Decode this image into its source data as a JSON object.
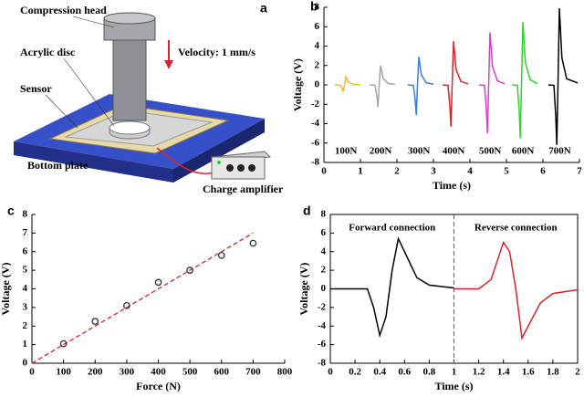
{
  "diagram": {
    "panel": "a",
    "compression_head": "Compression head",
    "velocity": "Velocity: 1 mm/s",
    "acrylic_disc": "Acrylic disc",
    "sensor": "Sensor",
    "bottom_plate": "Bottom plate",
    "charge_amplifier": "Charge amplifier"
  },
  "chart_data": [
    {
      "type": "line",
      "panel": "b",
      "xlabel": "Time (s)",
      "ylabel": "Voltage (V)",
      "xlim": [
        0,
        7
      ],
      "xticks": [
        0,
        1,
        2,
        3,
        4,
        5,
        6,
        7
      ],
      "ylim": [
        -8,
        8
      ],
      "yticks": [
        -8,
        -6,
        -4,
        -2,
        0,
        2,
        4,
        6,
        8
      ],
      "series": [
        {
          "name": "100N",
          "color": "#f2b52c",
          "x": [
            0.3,
            0.45,
            0.5,
            0.53,
            0.57,
            0.6,
            0.67,
            0.8,
            1.0
          ],
          "values": [
            0,
            -0.05,
            -0.35,
            -0.7,
            0.16,
            0.8,
            0.28,
            0.06,
            0.02
          ]
        },
        {
          "name": "200N",
          "color": "#a6a6a6",
          "x": [
            1.25,
            1.4,
            1.45,
            1.48,
            1.52,
            1.55,
            1.62,
            1.75,
            1.95
          ],
          "values": [
            0,
            -0.05,
            -1.15,
            -2.3,
            0.4,
            2.0,
            0.7,
            0.16,
            0.04
          ]
        },
        {
          "name": "300N",
          "color": "#3b7dd8",
          "x": [
            2.3,
            2.45,
            2.5,
            2.53,
            2.57,
            2.6,
            2.67,
            2.8,
            3.0
          ],
          "values": [
            0,
            -0.05,
            -1.55,
            -3.1,
            0.58,
            2.9,
            1.02,
            0.23,
            0.06
          ]
        },
        {
          "name": "400N",
          "color": "#d7252c",
          "x": [
            3.25,
            3.4,
            3.45,
            3.48,
            3.52,
            3.55,
            3.62,
            3.75,
            3.95
          ],
          "values": [
            0,
            -0.05,
            -2.15,
            -4.3,
            0.9,
            4.5,
            1.58,
            0.36,
            0.09
          ]
        },
        {
          "name": "500N",
          "color": "#d63fc8",
          "x": [
            4.25,
            4.4,
            4.45,
            4.48,
            4.52,
            4.55,
            4.62,
            4.75,
            4.95
          ],
          "values": [
            0,
            -0.05,
            -2.5,
            -5,
            1.08,
            5.4,
            1.89,
            0.43,
            0.11
          ]
        },
        {
          "name": "600N",
          "color": "#33d12f",
          "x": [
            5.15,
            5.3,
            5.35,
            5.38,
            5.42,
            5.45,
            5.52,
            5.65,
            5.85
          ],
          "values": [
            0,
            -0.05,
            -2.75,
            -5.5,
            1.3,
            6.5,
            2.28,
            0.52,
            0.13
          ]
        },
        {
          "name": "700N",
          "color": "#000000",
          "x": [
            6.15,
            6.3,
            6.35,
            6.38,
            6.42,
            6.45,
            6.52,
            6.65,
            6.95
          ],
          "values": [
            0,
            -0.05,
            -3.1,
            -6.2,
            1.58,
            7.9,
            2.77,
            0.63,
            0.2
          ]
        }
      ]
    },
    {
      "type": "scatter",
      "panel": "c",
      "xlabel": "Force (N)",
      "ylabel": "Voltage (V)",
      "xlim": [
        0,
        800
      ],
      "xticks": [
        0,
        100,
        200,
        300,
        400,
        500,
        600,
        700,
        800
      ],
      "ylim": [
        0,
        8
      ],
      "yticks": [
        0,
        1,
        2,
        3,
        4,
        5,
        6,
        7,
        8
      ],
      "series": [
        {
          "color": "#333333",
          "x": [
            100,
            200,
            300,
            400,
            500,
            600,
            700
          ],
          "values": [
            1.05,
            2.25,
            3.1,
            4.35,
            5.0,
            5.8,
            6.45
          ]
        }
      ],
      "fit_line": {
        "color": "#d7252c",
        "x": [
          0,
          700
        ],
        "values": [
          0,
          7
        ]
      }
    },
    {
      "type": "line",
      "panel": "d",
      "xlabel": "Time (s)",
      "ylabel": "Voltage (V)",
      "xlim": [
        0,
        2
      ],
      "xticks": [
        0,
        0.2,
        0.4,
        0.6,
        0.8,
        1,
        1.2,
        1.4,
        1.6,
        1.8,
        2
      ],
      "ylim": [
        -8,
        8
      ],
      "yticks": [
        -8,
        -6,
        -4,
        -2,
        0,
        2,
        4,
        6,
        8
      ],
      "vline": 1,
      "annotations": [
        "Forward connection",
        "Reverse connection"
      ],
      "series": [
        {
          "color": "#000000",
          "x": [
            0,
            0.3,
            0.35,
            0.4,
            0.45,
            0.5,
            0.55,
            0.6,
            0.7,
            0.8,
            1.0
          ],
          "values": [
            0,
            0,
            -2,
            -5,
            -3,
            2,
            5.4,
            4,
            1.2,
            0.4,
            0.1
          ]
        },
        {
          "color": "#d7252c",
          "x": [
            1.0,
            1.2,
            1.3,
            1.35,
            1.4,
            1.45,
            1.5,
            1.55,
            1.6,
            1.7,
            1.8,
            2.0
          ],
          "values": [
            0,
            0,
            1,
            3,
            5,
            4,
            0,
            -5.3,
            -4,
            -1.5,
            -0.5,
            -0.1
          ]
        }
      ]
    }
  ]
}
